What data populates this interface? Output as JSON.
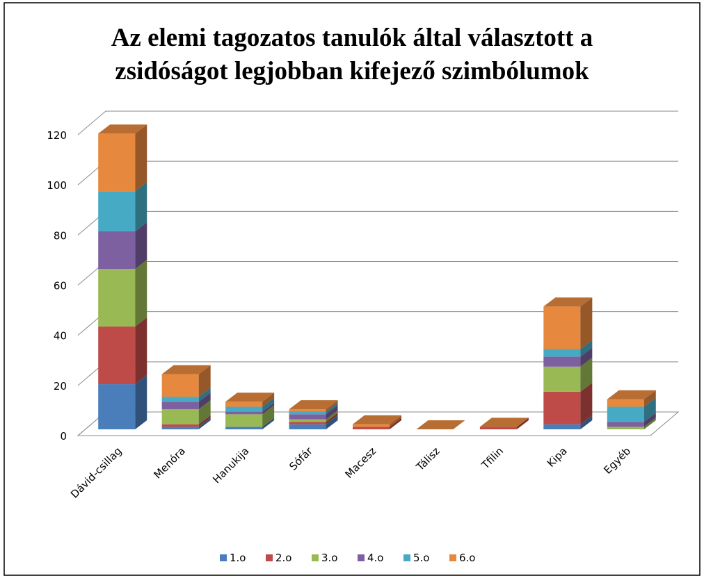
{
  "chart_data": {
    "type": "bar3d_stacked",
    "title": [
      "Az elemi tagozatos tanulók által választott a",
      "zsidóságot legjobban kifejező szimbólumok"
    ],
    "categories": [
      "Dávid-csillag",
      "Menóra",
      "Hanukija",
      "Sófár",
      "Macesz",
      "Tálisz",
      "Tfilin",
      "Kipa",
      "Egyéb"
    ],
    "series": [
      {
        "name": "1.o",
        "color": "#4a7ebb",
        "values": [
          18,
          1,
          1,
          2,
          0,
          0,
          0,
          2,
          0
        ]
      },
      {
        "name": "2.o",
        "color": "#be4b48",
        "values": [
          23,
          1,
          0,
          1,
          1,
          0,
          1,
          13,
          0
        ]
      },
      {
        "name": "3.o",
        "color": "#98b954",
        "values": [
          23,
          6,
          5,
          1,
          0,
          0,
          0,
          10,
          1
        ]
      },
      {
        "name": "4.o",
        "color": "#7d60a0",
        "values": [
          15,
          3,
          1,
          2,
          0,
          0,
          0,
          4,
          2
        ]
      },
      {
        "name": "5.o",
        "color": "#46aac5",
        "values": [
          16,
          2,
          2,
          1,
          0,
          0,
          0,
          3,
          6
        ]
      },
      {
        "name": "6.o",
        "color": "#e6883e",
        "values": [
          23,
          9,
          2,
          1,
          1,
          0,
          0,
          17,
          3
        ]
      }
    ],
    "ylim": [
      0,
      120
    ],
    "yticks": [
      0,
      20,
      40,
      60,
      80,
      100,
      120
    ],
    "grid": true,
    "legend": "bottom"
  }
}
